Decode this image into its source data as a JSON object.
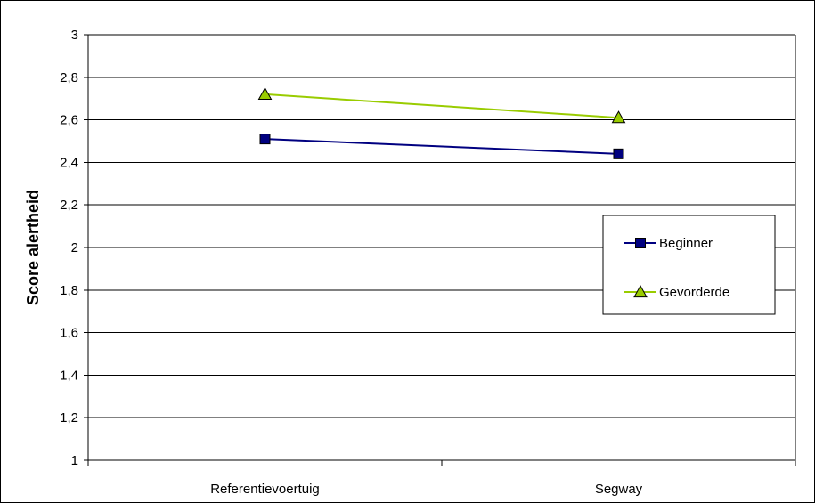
{
  "chart_data": {
    "type": "line",
    "categories": [
      "Referentievoertuig",
      "Segway"
    ],
    "series": [
      {
        "name": "Beginner",
        "values": [
          2.51,
          2.44
        ],
        "color": "#000080",
        "marker": "square"
      },
      {
        "name": "Gevorderde",
        "values": [
          2.72,
          2.61
        ],
        "color": "#99CC00",
        "marker": "triangle"
      }
    ],
    "ylabel": "Score alertheid",
    "xlabel": "",
    "ylim": [
      1,
      3
    ],
    "yticks": [
      "1",
      "1,2",
      "1,4",
      "1,6",
      "1,8",
      "2",
      "2,2",
      "2,4",
      "2,6",
      "2,8",
      "3"
    ],
    "grid": true,
    "legend": "right"
  }
}
